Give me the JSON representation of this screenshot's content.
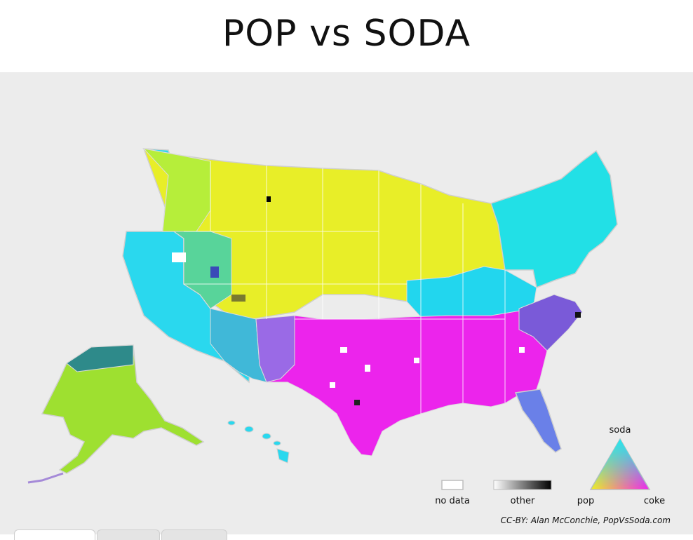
{
  "title": "POP vs SODA",
  "legend": {
    "nodata_label": "no data",
    "other_label": "other",
    "triangle_top_label": "soda",
    "triangle_left_label": "pop",
    "triangle_right_label": "coke"
  },
  "credit": "CC-BY: Alan McConchie, PopVsSoda.com",
  "colors": {
    "pop": "#f0f020",
    "soda": "#20e8f0",
    "coke": "#f020f0",
    "other": "#000000",
    "nodata": "#ffffff",
    "background": "#ececec"
  }
}
